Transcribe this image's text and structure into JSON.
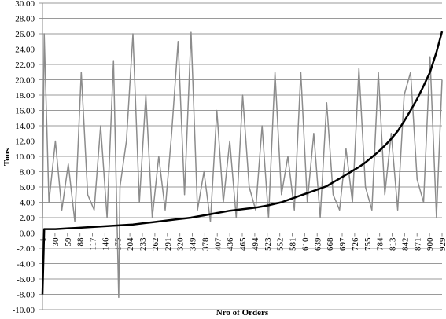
{
  "chart_data": {
    "type": "line",
    "xlabel": "Nro of Orders",
    "ylabel": "Tons",
    "x": [
      1,
      5,
      16,
      31,
      46,
      61,
      76,
      91,
      106,
      121,
      136,
      151,
      166,
      178,
      181,
      196,
      211,
      226,
      241,
      256,
      271,
      286,
      301,
      316,
      331,
      346,
      361,
      376,
      391,
      406,
      421,
      436,
      451,
      466,
      481,
      496,
      511,
      526,
      541,
      556,
      571,
      586,
      601,
      616,
      631,
      646,
      661,
      676,
      691,
      706,
      721,
      736,
      751,
      766,
      781,
      796,
      811,
      826,
      841,
      856,
      871,
      886,
      901,
      916,
      929
    ],
    "series": [
      {
        "color": "#8c8c8c",
        "values": [
          2,
          26,
          4,
          12,
          3,
          9,
          1.5,
          21,
          5,
          3,
          14,
          2,
          22.5,
          -8.4,
          6,
          12,
          26,
          4,
          18,
          2,
          10,
          3,
          13,
          25,
          5,
          26.2,
          3,
          8,
          1.5,
          16,
          4,
          12,
          2,
          18,
          6,
          3,
          14,
          2,
          21,
          5,
          10,
          3,
          21,
          4,
          13,
          2,
          17,
          5,
          3,
          11,
          4,
          21.5,
          6,
          3,
          21,
          5,
          13,
          3,
          18,
          21,
          7,
          4,
          23,
          2,
          20
        ]
      },
      {
        "color": "#000000",
        "values": [
          -8,
          0.5,
          0.5,
          0.5,
          0.55,
          0.6,
          0.65,
          0.7,
          0.75,
          0.8,
          0.85,
          0.9,
          0.95,
          0.98,
          1.0,
          1.05,
          1.1,
          1.2,
          1.3,
          1.4,
          1.5,
          1.6,
          1.7,
          1.8,
          1.9,
          2.0,
          2.15,
          2.3,
          2.45,
          2.6,
          2.75,
          2.9,
          3.0,
          3.1,
          3.2,
          3.3,
          3.45,
          3.6,
          3.8,
          4.0,
          4.3,
          4.6,
          4.9,
          5.2,
          5.5,
          5.8,
          6.1,
          6.6,
          7.1,
          7.6,
          8.1,
          8.6,
          9.2,
          9.9,
          10.6,
          11.4,
          12.3,
          13.3,
          14.6,
          16.0,
          17.5,
          19.2,
          21.0,
          23.6,
          26.3
        ]
      }
    ],
    "xlim": [
      1,
      929
    ],
    "xticks": [
      1,
      30,
      59,
      88,
      117,
      146,
      175,
      204,
      233,
      262,
      291,
      320,
      349,
      378,
      407,
      436,
      465,
      494,
      523,
      552,
      581,
      610,
      639,
      668,
      697,
      726,
      755,
      784,
      813,
      842,
      871,
      900,
      929
    ],
    "ylim": [
      -10,
      30
    ],
    "yticks": [
      {
        "value": -10,
        "label": "-10.00"
      },
      {
        "value": -8,
        "label": "-8.00"
      },
      {
        "value": -6,
        "label": "-6.00"
      },
      {
        "value": -4,
        "label": "-4.00"
      },
      {
        "value": -2,
        "label": "-2.00"
      },
      {
        "value": 0,
        "label": "0.00"
      },
      {
        "value": 2,
        "label": "2.00"
      },
      {
        "value": 4,
        "label": "4.00"
      },
      {
        "value": 6,
        "label": "6.00"
      },
      {
        "value": 8,
        "label": "8.00"
      },
      {
        "value": 10,
        "label": "10.00"
      },
      {
        "value": 12,
        "label": "12.00"
      },
      {
        "value": 14,
        "label": "14.00"
      },
      {
        "value": 16,
        "label": "16.00"
      },
      {
        "value": 18,
        "label": "18.00"
      },
      {
        "value": 20,
        "label": "20.00"
      },
      {
        "value": 22,
        "label": "22.00"
      },
      {
        "value": 24,
        "label": "24.00"
      },
      {
        "value": 26,
        "label": "26.00"
      },
      {
        "value": 28,
        "label": "28.00"
      },
      {
        "value": 30,
        "label": "30.00"
      }
    ],
    "grid": true
  }
}
